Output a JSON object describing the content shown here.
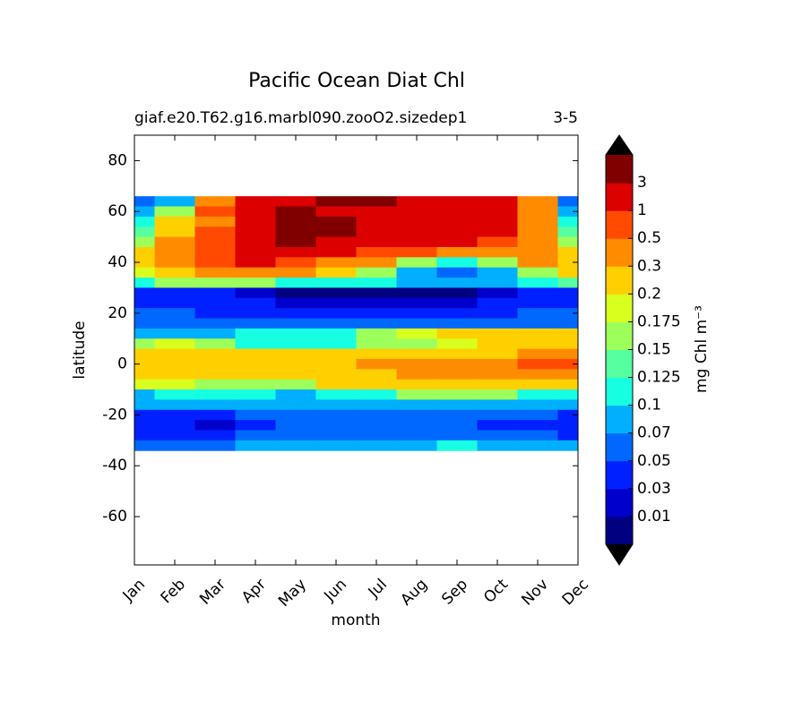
{
  "chart_data": {
    "type": "contour",
    "title": "Pacific Ocean Diat Chl",
    "subtitle_left": "giaf.e20.T62.g16.marbl090.zooO2.sizedep1",
    "subtitle_right": "3-5",
    "xlabel": "month",
    "ylabel": "latitude",
    "colorbar_label": "mg Chl m⁻³",
    "categories": [
      "Jan",
      "Feb",
      "Mar",
      "Apr",
      "May",
      "Jun",
      "Jul",
      "Aug",
      "Sep",
      "Oct",
      "Nov",
      "Dec"
    ],
    "ylim": [
      -79,
      90
    ],
    "yticks": [
      -60,
      -40,
      -20,
      0,
      20,
      40,
      60,
      80
    ],
    "lats": [
      64,
      60,
      56,
      52,
      48,
      44,
      40,
      36,
      32,
      28,
      24,
      20,
      16,
      12,
      8,
      4,
      0,
      -4,
      -8,
      -12,
      -16,
      -20,
      -24,
      -28,
      -32
    ],
    "z": [
      [
        0.05,
        0.07,
        0.3,
        1.5,
        2,
        4,
        4,
        2,
        2,
        2,
        0.3,
        0.05
      ],
      [
        0.07,
        0.15,
        0.5,
        2,
        4,
        2,
        2,
        2,
        2,
        2,
        0.3,
        0.07
      ],
      [
        0.1,
        0.2,
        0.4,
        2,
        4,
        4,
        2,
        2,
        2,
        2,
        0.4,
        0.1
      ],
      [
        0.125,
        0.25,
        0.7,
        2,
        4,
        4,
        2,
        2,
        2,
        2,
        0.4,
        0.125
      ],
      [
        0.15,
        0.3,
        0.7,
        2,
        4,
        2,
        2,
        2,
        2,
        0.7,
        0.3,
        0.15
      ],
      [
        0.2,
        0.4,
        0.6,
        2,
        2,
        2,
        0.7,
        0.5,
        0.4,
        0.4,
        0.3,
        0.2
      ],
      [
        0.25,
        0.4,
        0.5,
        2,
        0.7,
        0.4,
        0.3,
        0.15,
        0.1,
        0.15,
        0.3,
        0.25
      ],
      [
        0.18,
        0.25,
        0.3,
        0.3,
        0.3,
        0.2,
        0.15,
        0.07,
        0.05,
        0.07,
        0.15,
        0.2
      ],
      [
        0.12,
        0.15,
        0.15,
        0.15,
        0.12,
        0.1,
        0.1,
        0.08,
        0.08,
        0.08,
        0.12,
        0.13
      ],
      [
        0.04,
        0.04,
        0.03,
        0.02,
        0.008,
        0.008,
        0.008,
        0.008,
        0.008,
        0.02,
        0.03,
        0.04
      ],
      [
        0.04,
        0.04,
        0.04,
        0.03,
        0.02,
        0.02,
        0.02,
        0.02,
        0.02,
        0.03,
        0.04,
        0.04
      ],
      [
        0.05,
        0.05,
        0.04,
        0.04,
        0.04,
        0.04,
        0.04,
        0.04,
        0.04,
        0.04,
        0.05,
        0.05
      ],
      [
        0.06,
        0.06,
        0.06,
        0.05,
        0.05,
        0.05,
        0.05,
        0.05,
        0.06,
        0.06,
        0.06,
        0.06
      ],
      [
        0.09,
        0.08,
        0.08,
        0.1,
        0.1,
        0.12,
        0.15,
        0.18,
        0.2,
        0.25,
        0.25,
        0.25
      ],
      [
        0.16,
        0.18,
        0.15,
        0.12,
        0.12,
        0.12,
        0.15,
        0.15,
        0.18,
        0.2,
        0.22,
        0.25
      ],
      [
        0.22,
        0.22,
        0.22,
        0.22,
        0.22,
        0.2,
        0.22,
        0.25,
        0.25,
        0.25,
        0.3,
        0.35
      ],
      [
        0.25,
        0.25,
        0.25,
        0.25,
        0.22,
        0.25,
        0.3,
        0.35,
        0.4,
        0.4,
        0.5,
        0.7
      ],
      [
        0.22,
        0.22,
        0.22,
        0.2,
        0.2,
        0.22,
        0.25,
        0.35,
        0.35,
        0.35,
        0.3,
        0.3
      ],
      [
        0.18,
        0.18,
        0.15,
        0.15,
        0.15,
        0.2,
        0.22,
        0.22,
        0.25,
        0.22,
        0.2,
        0.2
      ],
      [
        0.09,
        0.1,
        0.1,
        0.1,
        0.09,
        0.1,
        0.12,
        0.15,
        0.15,
        0.15,
        0.12,
        0.1
      ],
      [
        0.07,
        0.07,
        0.07,
        0.07,
        0.07,
        0.07,
        0.08,
        0.08,
        0.08,
        0.08,
        0.07,
        0.07
      ],
      [
        0.04,
        0.04,
        0.04,
        0.05,
        0.05,
        0.05,
        0.05,
        0.06,
        0.06,
        0.05,
        0.05,
        0.04
      ],
      [
        0.03,
        0.03,
        0.02,
        0.04,
        0.05,
        0.05,
        0.05,
        0.05,
        0.05,
        0.04,
        0.03,
        0.03
      ],
      [
        0.04,
        0.04,
        0.04,
        0.05,
        0.05,
        0.06,
        0.06,
        0.06,
        0.06,
        0.06,
        0.05,
        0.04
      ],
      [
        0.06,
        0.06,
        0.06,
        0.07,
        0.07,
        0.08,
        0.08,
        0.09,
        0.12,
        0.09,
        0.08,
        0.07
      ]
    ],
    "levels": [
      0.01,
      0.03,
      0.05,
      0.07,
      0.1,
      0.125,
      0.15,
      0.175,
      0.2,
      0.3,
      0.5,
      1,
      3
    ],
    "colors": [
      "#000080",
      "#0000cc",
      "#0020ff",
      "#0068ff",
      "#00b0ff",
      "#16ffe1",
      "#56ff9f",
      "#9dff5a",
      "#d8ff1e",
      "#ffd000",
      "#ff8c00",
      "#ff4a00",
      "#dd0000",
      "#800000"
    ],
    "under_color": "#000000",
    "over_color": "#000000"
  }
}
